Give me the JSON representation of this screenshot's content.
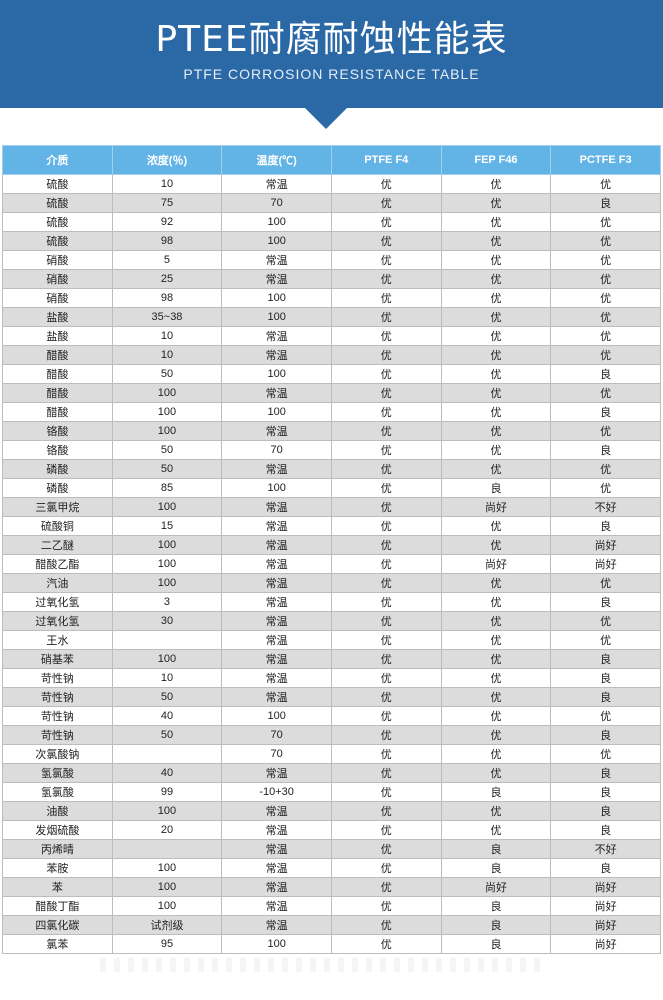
{
  "header": {
    "title": "PTEE耐腐耐蚀性能表",
    "subtitle": "PTFE CORROSION RESISTANCE TABLE",
    "color": "#2b68a6"
  },
  "table": {
    "columns": [
      "介质",
      "浓度(％)",
      "温度(℃)",
      "PTFE F4",
      "FEP F46",
      "PCTFE F3"
    ],
    "rows": [
      [
        "硫酸",
        "10",
        "常温",
        "优",
        "优",
        "优"
      ],
      [
        "硫酸",
        "75",
        "70",
        "优",
        "优",
        "良"
      ],
      [
        "硫酸",
        "92",
        "100",
        "优",
        "优",
        "优"
      ],
      [
        "硫酸",
        "98",
        "100",
        "优",
        "优",
        "优"
      ],
      [
        "硝酸",
        "5",
        "常温",
        "优",
        "优",
        "优"
      ],
      [
        "硝酸",
        "25",
        "常温",
        "优",
        "优",
        "优"
      ],
      [
        "硝酸",
        "98",
        "100",
        "优",
        "优",
        "优"
      ],
      [
        "盐酸",
        "35~38",
        "100",
        "优",
        "优",
        "优"
      ],
      [
        "盐酸",
        "10",
        "常温",
        "优",
        "优",
        "优"
      ],
      [
        "醋酸",
        "10",
        "常温",
        "优",
        "优",
        "优"
      ],
      [
        "醋酸",
        "50",
        "100",
        "优",
        "优",
        "良"
      ],
      [
        "醋酸",
        "100",
        "常温",
        "优",
        "优",
        "优"
      ],
      [
        "醋酸",
        "100",
        "100",
        "优",
        "优",
        "良"
      ],
      [
        "铬酸",
        "100",
        "常温",
        "优",
        "优",
        "优"
      ],
      [
        "铬酸",
        "50",
        "70",
        "优",
        "优",
        "良"
      ],
      [
        "磷酸",
        "50",
        "常温",
        "优",
        "优",
        "优"
      ],
      [
        "磷酸",
        "85",
        "100",
        "优",
        "良",
        "优"
      ],
      [
        "三氯甲烷",
        "100",
        "常温",
        "优",
        "尚好",
        "不好"
      ],
      [
        "硫酸铜",
        "15",
        "常温",
        "优",
        "优",
        "良"
      ],
      [
        "二乙醚",
        "100",
        "常温",
        "优",
        "优",
        "尚好"
      ],
      [
        "醋酸乙酯",
        "100",
        "常温",
        "优",
        "尚好",
        "尚好"
      ],
      [
        "汽油",
        "100",
        "常温",
        "优",
        "优",
        "优"
      ],
      [
        "过氧化氢",
        "3",
        "常温",
        "优",
        "优",
        "良"
      ],
      [
        "过氧化氢",
        "30",
        "常温",
        "优",
        "优",
        "优"
      ],
      [
        "王水",
        "",
        "常温",
        "优",
        "优",
        "优"
      ],
      [
        "硝基苯",
        "100",
        "常温",
        "优",
        "优",
        "良"
      ],
      [
        "苛性钠",
        "10",
        "常温",
        "优",
        "优",
        "良"
      ],
      [
        "苛性钠",
        "50",
        "常温",
        "优",
        "优",
        "良"
      ],
      [
        "苛性钠",
        "40",
        "100",
        "优",
        "优",
        "优"
      ],
      [
        "苛性钠",
        "50",
        "70",
        "优",
        "优",
        "良"
      ],
      [
        "次氯酸钠",
        "",
        "70",
        "优",
        "优",
        "优"
      ],
      [
        "氢氯酸",
        "40",
        "常温",
        "优",
        "优",
        "良"
      ],
      [
        "氢氯酸",
        "99",
        "-10+30",
        "优",
        "良",
        "良"
      ],
      [
        "油酸",
        "100",
        "常温",
        "优",
        "优",
        "良"
      ],
      [
        "发烟硫酸",
        "20",
        "常温",
        "优",
        "优",
        "良"
      ],
      [
        "丙烯晴",
        "",
        "常温",
        "优",
        "良",
        "不好"
      ],
      [
        "苯胺",
        "100",
        "常温",
        "优",
        "良",
        "良"
      ],
      [
        "苯",
        "100",
        "常温",
        "优",
        "尚好",
        "尚好"
      ],
      [
        "醋酸丁酯",
        "100",
        "常温",
        "优",
        "良",
        "尚好"
      ],
      [
        "四氯化碳",
        "试剂级",
        "常温",
        "优",
        "良",
        "尚好"
      ],
      [
        "氯苯",
        "95",
        "100",
        "优",
        "良",
        "尚好"
      ]
    ]
  }
}
